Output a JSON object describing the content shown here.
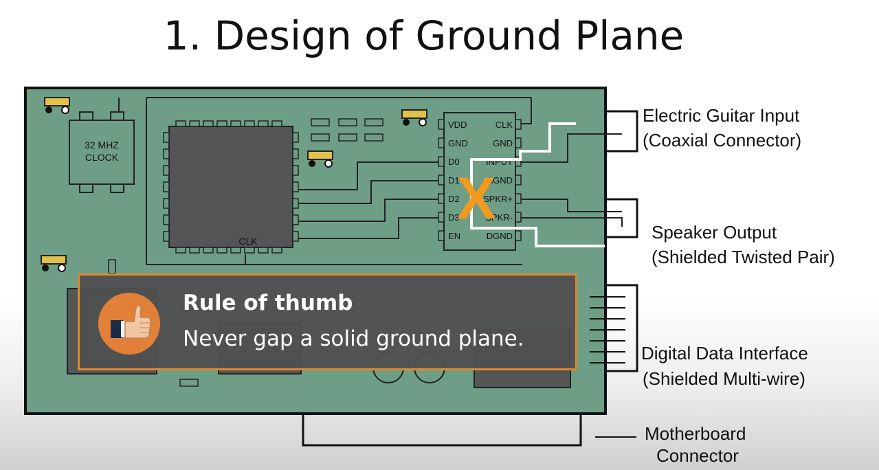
{
  "slide": {
    "title": "1. Design of Ground Plane"
  },
  "board": {
    "clock_label_line1": "32 MHZ",
    "clock_label_line2": "CLOCK",
    "cpu_clk_label": "CLK",
    "ic_pins_left": [
      "VDD",
      "GND",
      "D0",
      "D1",
      "D2",
      "D3",
      "EN"
    ],
    "ic_pins_right": [
      "CLK",
      "GND",
      "INPUT",
      "AGND",
      "SPKR+",
      "SPKR-",
      "DGND"
    ],
    "x_mark": "X"
  },
  "connectors": {
    "guitar_line1": "Electric Guitar Input",
    "guitar_line2": "(Coaxial Connector)",
    "speaker_line1": "Speaker Output",
    "speaker_line2": "(Shielded Twisted Pair)",
    "digital_line1": "Digital Data Interface",
    "digital_line2": "(Shielded Multi-wire)",
    "motherboard_line1": "Motherboard",
    "motherboard_line2": "Connector"
  },
  "callout": {
    "title": "Rule of thumb",
    "text": "Never gap a solid ground plane.",
    "icon": "thumbs-up-icon"
  },
  "colors": {
    "board_green": "#6e9e86",
    "callout_border": "#e0892e",
    "x_orange": "#f29a1f"
  }
}
